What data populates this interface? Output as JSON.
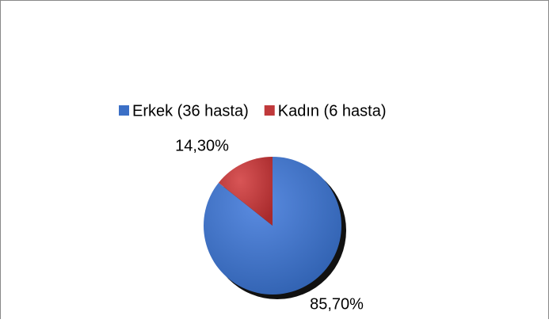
{
  "chart_data": {
    "type": "pie",
    "categories": [
      "Erkek (36 hasta)",
      "Kadın (6 hasta)"
    ],
    "values": [
      85.7,
      14.3
    ],
    "value_labels": [
      "85,70%",
      "14,30%"
    ],
    "colors": [
      "#3b6fc6",
      "#c0393b"
    ],
    "legend": "top"
  }
}
